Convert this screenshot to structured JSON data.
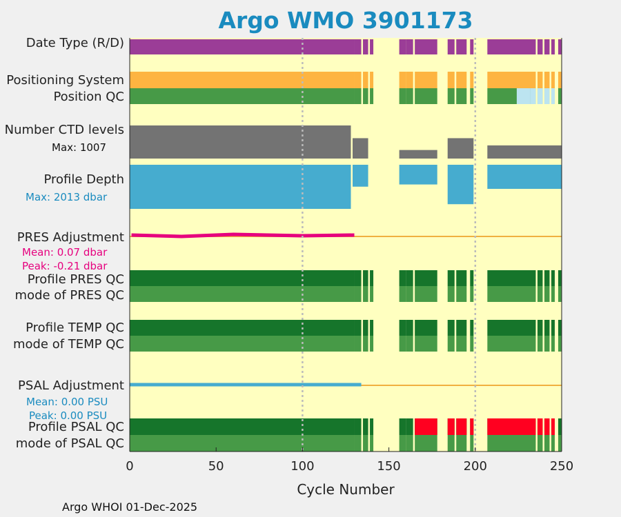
{
  "chart_data": {
    "type": "bar",
    "title": "Argo WMO 3901173",
    "xlabel": "Cycle Number",
    "xlim": [
      0,
      250
    ],
    "xticks": [
      0,
      50,
      100,
      150,
      200,
      250
    ],
    "reference_lines": [
      100,
      200
    ],
    "rows": [
      {
        "label": "Date Type (R/D)"
      },
      {
        "label": "Positioning System"
      },
      {
        "label": "Position QC"
      },
      {
        "label": "Number CTD levels",
        "note": "Max: 1007",
        "max": 1007
      },
      {
        "label": "Profile Depth",
        "note": "Max: 2013 dbar",
        "max": 2013
      },
      {
        "label": "PRES Adjustment",
        "mean": "Mean: 0.07 dbar",
        "peak": "Peak: -0.21 dbar"
      },
      {
        "label": "Profile PRES QC"
      },
      {
        "label": "mode of PRES QC"
      },
      {
        "label": "Profile TEMP QC"
      },
      {
        "label": "mode of TEMP QC"
      },
      {
        "label": "PSAL Adjustment",
        "mean": "Mean: 0.00 PSU",
        "peak": "Peak: 0.00 PSU"
      },
      {
        "label": "Profile PSAL QC"
      },
      {
        "label": "mode of PSAL QC"
      }
    ],
    "present_cycle_ranges": [
      [
        1,
        130
      ],
      [
        131,
        134
      ],
      [
        136,
        138
      ],
      [
        140,
        141
      ],
      [
        157,
        160
      ],
      [
        161,
        164
      ],
      [
        166,
        178
      ],
      [
        185,
        188
      ],
      [
        190,
        195
      ],
      [
        198,
        199
      ],
      [
        208,
        235
      ],
      [
        237,
        239
      ],
      [
        241,
        243
      ],
      [
        245,
        246
      ],
      [
        249,
        250
      ]
    ],
    "position_qc_ranges": [
      [
        225,
        232
      ],
      [
        233,
        235
      ],
      [
        237,
        239
      ],
      [
        241,
        243
      ],
      [
        245,
        246
      ]
    ],
    "psal_qc_bad_ranges": [
      [
        166,
        178
      ],
      [
        185,
        188
      ],
      [
        190,
        195
      ],
      [
        198,
        199
      ],
      [
        208,
        235
      ],
      [
        237,
        239
      ],
      [
        241,
        243
      ],
      [
        245,
        246
      ]
    ],
    "ctd_levels_by_range": [
      [
        1,
        128,
        1007
      ],
      [
        130,
        138,
        620
      ],
      [
        157,
        178,
        260
      ],
      [
        185,
        199,
        620
      ],
      [
        208,
        250,
        400
      ]
    ],
    "profile_depth_by_range": [
      [
        1,
        128,
        2013
      ],
      [
        130,
        138,
        1000
      ],
      [
        157,
        178,
        900
      ],
      [
        185,
        199,
        1800
      ],
      [
        208,
        250,
        1100
      ]
    ],
    "colors": {
      "background": "#ffffc0",
      "date_type": "#9b3d97",
      "positioning": "#fdb441",
      "qc_good_dark": "#16752b",
      "qc_good_light": "#479a47",
      "qc_bad": "#ff0020",
      "qc_pos_light": "#bce4f0",
      "ctd": "#737373",
      "depth": "#46accf",
      "pres_adj": "#e6007e",
      "psal_adj": "#46accf",
      "zero_line": "#f0b040",
      "refline": "#bbbbbb",
      "title": "#1a8bbf"
    }
  },
  "footer": "Argo WHOI 01-Dec-2025"
}
